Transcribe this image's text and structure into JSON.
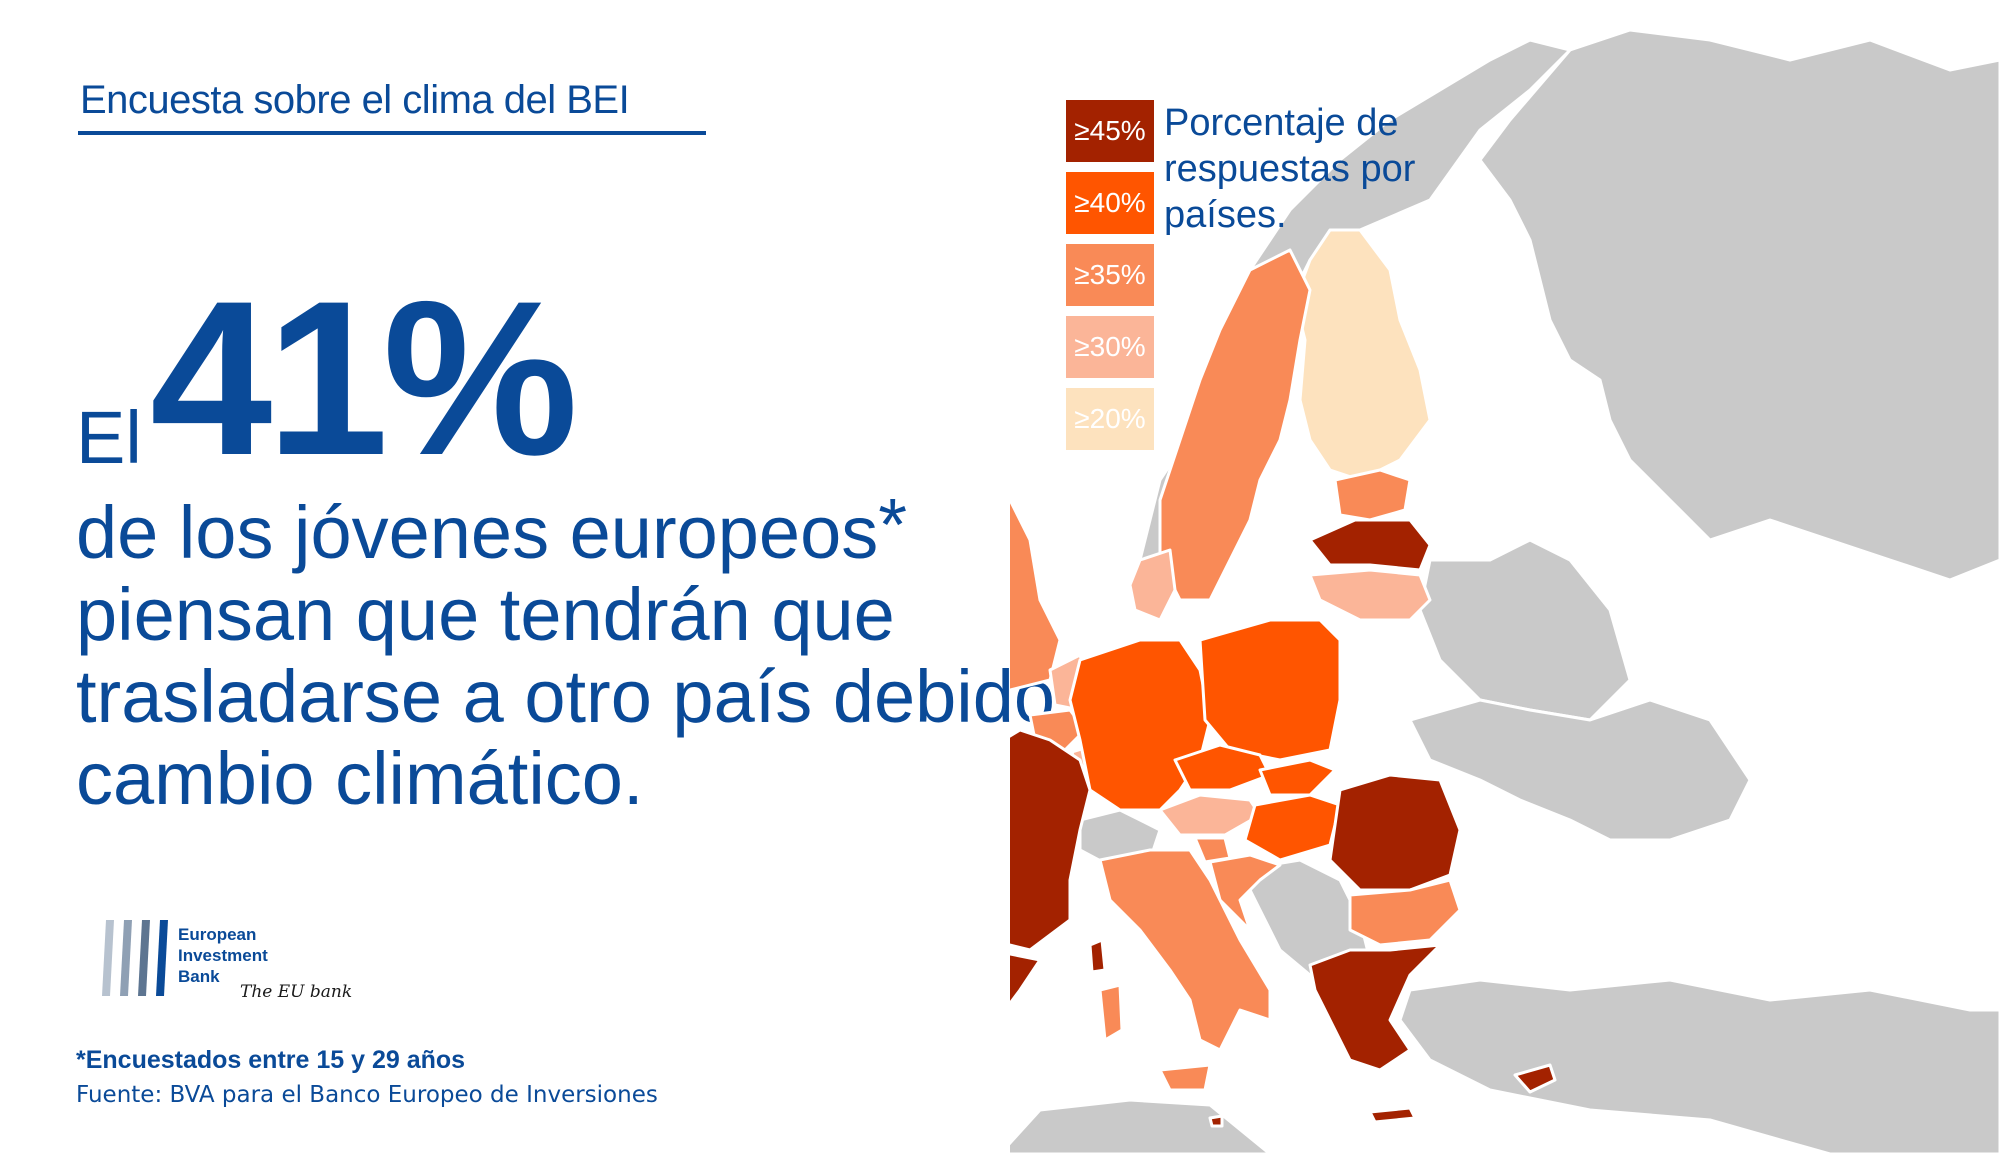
{
  "header": {
    "title": "Encuesta sobre el clima del BEI"
  },
  "headline": {
    "prefix": "El",
    "value": "41%",
    "line1": "de los jóvenes europeos",
    "asterisk": "*",
    "line2": "piensan que tendrán que",
    "line3": "trasladarse a otro país debido al",
    "line4": "cambio climático."
  },
  "legend": {
    "title_lines": [
      "Porcentaje de",
      "respuestas por",
      "países."
    ],
    "items": [
      {
        "label": "≥45%",
        "color": "#a32200",
        "text_color": "#ffffff"
      },
      {
        "label": "≥40%",
        "color": "#ff5500",
        "text_color": "#ffffff"
      },
      {
        "label": "≥35%",
        "color": "#f98a57",
        "text_color": "#ffffff"
      },
      {
        "label": "≥30%",
        "color": "#fbb598",
        "text_color": "#ffffff"
      },
      {
        "label": "≥20%",
        "color": "#fde2be",
        "text_color": "#ffffff"
      }
    ]
  },
  "logo": {
    "lines": [
      "European",
      "Investment",
      "Bank"
    ],
    "tagline": "The EU bank"
  },
  "footnote": "*Encuestados entre 15 y 29 años",
  "source": "Fuente: BVA para el Banco Europeo de Inversiones",
  "colors": {
    "brand_blue": "#0a4a98",
    "non_eu_grey": "#c9c9c9",
    "border": "#ffffff"
  },
  "map_regions": [
    {
      "name": "Spain",
      "class": "≥45%"
    },
    {
      "name": "France",
      "class": "≥45%"
    },
    {
      "name": "Latvia",
      "class": "≥45%"
    },
    {
      "name": "Romania",
      "class": "≥45%"
    },
    {
      "name": "Greece",
      "class": "≥45%"
    },
    {
      "name": "Cyprus",
      "class": "≥45%"
    },
    {
      "name": "Malta",
      "class": "≥45%"
    },
    {
      "name": "Germany",
      "class": "≥40%"
    },
    {
      "name": "Poland",
      "class": "≥40%"
    },
    {
      "name": "Czechia",
      "class": "≥40%"
    },
    {
      "name": "Slovakia",
      "class": "≥40%"
    },
    {
      "name": "Hungary",
      "class": "≥40%"
    },
    {
      "name": "Sweden",
      "class": "≥35%"
    },
    {
      "name": "Estonia",
      "class": "≥35%"
    },
    {
      "name": "Ireland",
      "class": "≥35%"
    },
    {
      "name": "United Kingdom",
      "class": "≥35%"
    },
    {
      "name": "Portugal",
      "class": "≥35%"
    },
    {
      "name": "Italy",
      "class": "≥35%"
    },
    {
      "name": "Croatia",
      "class": "≥35%"
    },
    {
      "name": "Slovenia",
      "class": "≥35%"
    },
    {
      "name": "Bulgaria",
      "class": "≥35%"
    },
    {
      "name": "Belgium",
      "class": "≥35%"
    },
    {
      "name": "Lithuania",
      "class": "≥30%"
    },
    {
      "name": "Denmark",
      "class": "≥30%"
    },
    {
      "name": "Netherlands",
      "class": "≥30%"
    },
    {
      "name": "Austria",
      "class": "≥30%"
    },
    {
      "name": "Luxembourg",
      "class": "≥30%"
    },
    {
      "name": "Finland",
      "class": "≥20%"
    }
  ]
}
